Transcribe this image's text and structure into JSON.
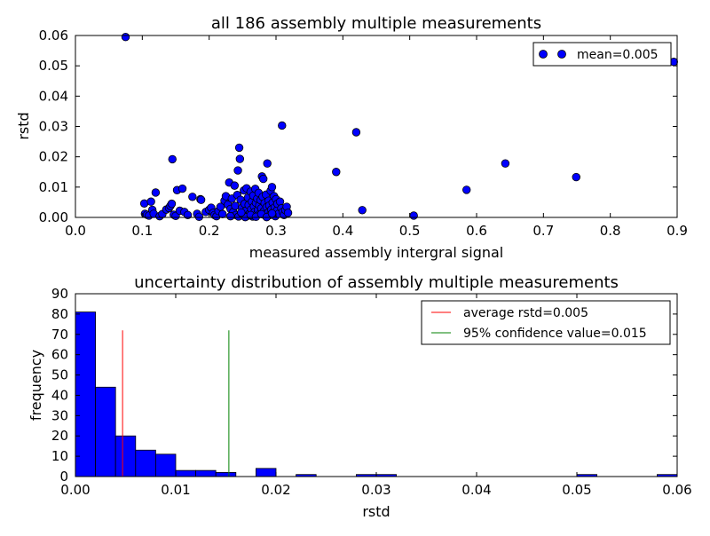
{
  "chart_data": [
    {
      "type": "scatter",
      "title": "all 186 assembly multiple measurements",
      "xlabel": "measured assembly intergral signal",
      "ylabel": "rstd",
      "xlim": [
        0.0,
        0.9
      ],
      "ylim": [
        0.0,
        0.06
      ],
      "xticks": [
        "0.0",
        "0.1",
        "0.2",
        "0.3",
        "0.4",
        "0.5",
        "0.6",
        "0.7",
        "0.8",
        "0.9"
      ],
      "yticks": [
        "0.00",
        "0.01",
        "0.02",
        "0.03",
        "0.04",
        "0.05",
        "0.06"
      ],
      "legend_position": "top-right",
      "colors": {
        "marker": "#0000ff"
      },
      "series": [
        {
          "name": "mean=0.005",
          "points": [
            [
              0.075,
              0.0595
            ],
            [
              0.145,
              0.0192
            ],
            [
              0.243,
              0.0155
            ],
            [
              0.245,
              0.023
            ],
            [
              0.246,
              0.0193
            ],
            [
              0.279,
              0.0135
            ],
            [
              0.281,
              0.0127
            ],
            [
              0.287,
              0.0178
            ],
            [
              0.309,
              0.0303
            ],
            [
              0.39,
              0.015
            ],
            [
              0.42,
              0.0281
            ],
            [
              0.429,
              0.0024
            ],
            [
              0.506,
              0.0006
            ],
            [
              0.585,
              0.0091
            ],
            [
              0.643,
              0.0178
            ],
            [
              0.749,
              0.0133
            ],
            [
              0.895,
              0.0513
            ],
            [
              0.103,
              0.0046
            ],
            [
              0.104,
              0.0012
            ],
            [
              0.107,
              0.0009
            ],
            [
              0.11,
              0.0006
            ],
            [
              0.113,
              0.0052
            ],
            [
              0.115,
              0.0025
            ],
            [
              0.117,
              0.0012
            ],
            [
              0.12,
              0.0082
            ],
            [
              0.126,
              0.0004
            ],
            [
              0.13,
              0.0011
            ],
            [
              0.136,
              0.0026
            ],
            [
              0.14,
              0.0031
            ],
            [
              0.142,
              0.0038
            ],
            [
              0.144,
              0.0045
            ],
            [
              0.147,
              0.0009
            ],
            [
              0.15,
              0.0005
            ],
            [
              0.152,
              0.009
            ],
            [
              0.156,
              0.0022
            ],
            [
              0.16,
              0.0095
            ],
            [
              0.163,
              0.0018
            ],
            [
              0.168,
              0.0008
            ],
            [
              0.175,
              0.0068
            ],
            [
              0.182,
              0.0012
            ],
            [
              0.185,
              0.0002
            ],
            [
              0.187,
              0.006
            ],
            [
              0.188,
              0.0058
            ],
            [
              0.195,
              0.0018
            ],
            [
              0.2,
              0.0025
            ],
            [
              0.203,
              0.0032
            ],
            [
              0.206,
              0.0015
            ],
            [
              0.208,
              0.0008
            ],
            [
              0.211,
              0.0004
            ],
            [
              0.214,
              0.0021
            ],
            [
              0.217,
              0.0035
            ],
            [
              0.22,
              0.0011
            ],
            [
              0.223,
              0.0055
            ],
            [
              0.225,
              0.007
            ],
            [
              0.228,
              0.0042
            ],
            [
              0.23,
              0.0115
            ],
            [
              0.232,
              0.0028
            ],
            [
              0.234,
              0.0062
            ],
            [
              0.236,
              0.0018
            ],
            [
              0.238,
              0.0105
            ],
            [
              0.239,
              0.0038
            ],
            [
              0.24,
              0.0008
            ],
            [
              0.242,
              0.0074
            ],
            [
              0.244,
              0.0003
            ],
            [
              0.247,
              0.0058
            ],
            [
              0.249,
              0.0032
            ],
            [
              0.25,
              0.0011
            ],
            [
              0.252,
              0.0089
            ],
            [
              0.253,
              0.0045
            ],
            [
              0.255,
              0.0022
            ],
            [
              0.256,
              0.0096
            ],
            [
              0.257,
              0.0005
            ],
            [
              0.258,
              0.0065
            ],
            [
              0.259,
              0.0041
            ],
            [
              0.261,
              0.0014
            ],
            [
              0.262,
              0.0085
            ],
            [
              0.263,
              0.0027
            ],
            [
              0.264,
              0.0052
            ],
            [
              0.265,
              0.0003
            ],
            [
              0.266,
              0.0072
            ],
            [
              0.267,
              0.0036
            ],
            [
              0.268,
              0.0018
            ],
            [
              0.269,
              0.0094
            ],
            [
              0.27,
              0.0048
            ],
            [
              0.271,
              0.0009
            ],
            [
              0.272,
              0.0062
            ],
            [
              0.273,
              0.0025
            ],
            [
              0.274,
              0.0081
            ],
            [
              0.275,
              0.004
            ],
            [
              0.276,
              0.0012
            ],
            [
              0.277,
              0.0057
            ],
            [
              0.278,
              0.003
            ],
            [
              0.28,
              0.0068
            ],
            [
              0.282,
              0.0021
            ],
            [
              0.283,
              0.0047
            ],
            [
              0.284,
              0.0006
            ],
            [
              0.285,
              0.0075
            ],
            [
              0.286,
              0.0034
            ],
            [
              0.288,
              0.0015
            ],
            [
              0.289,
              0.0055
            ],
            [
              0.29,
              0.0039
            ],
            [
              0.291,
              0.0008
            ],
            [
              0.292,
              0.0088
            ],
            [
              0.293,
              0.0026
            ],
            [
              0.294,
              0.01
            ],
            [
              0.295,
              0.0049
            ],
            [
              0.296,
              0.0017
            ],
            [
              0.297,
              0.007
            ],
            [
              0.298,
              0.0033
            ],
            [
              0.299,
              0.0004
            ],
            [
              0.3,
              0.006
            ],
            [
              0.301,
              0.0022
            ],
            [
              0.302,
              0.0045
            ],
            [
              0.304,
              0.0012
            ],
            [
              0.306,
              0.0052
            ],
            [
              0.308,
              0.003
            ],
            [
              0.31,
              0.0018
            ],
            [
              0.312,
              0.0008
            ],
            [
              0.314,
              0.0024
            ],
            [
              0.316,
              0.0035
            ],
            [
              0.318,
              0.0015
            ],
            [
              0.254,
              0.0001
            ],
            [
              0.262,
              0.0008
            ],
            [
              0.27,
              0.0002
            ],
            [
              0.278,
              0.0011
            ],
            [
              0.286,
              0.0001
            ],
            [
              0.294,
              0.0013
            ],
            [
              0.248,
              0.0016
            ],
            [
              0.232,
              0.0004
            ]
          ]
        }
      ]
    },
    {
      "type": "bar",
      "title": "uncertainty distribution of assembly multiple measurements",
      "xlabel": "rstd",
      "ylabel": "frequency",
      "xlim": [
        0.0,
        0.06
      ],
      "ylim": [
        0,
        90
      ],
      "xticks": [
        "0.00",
        "0.01",
        "0.02",
        "0.03",
        "0.04",
        "0.05",
        "0.06"
      ],
      "yticks": [
        "0",
        "10",
        "20",
        "30",
        "40",
        "50",
        "60",
        "70",
        "80",
        "90"
      ],
      "legend_position": "top-right",
      "colors": {
        "bar": "#0000ff",
        "average_line": "#ff0000",
        "confidence_line": "#008000"
      },
      "bin_width": 0.002,
      "bins": [
        [
          0.0,
          81
        ],
        [
          0.002,
          44
        ],
        [
          0.004,
          20
        ],
        [
          0.006,
          13
        ],
        [
          0.008,
          11
        ],
        [
          0.01,
          3
        ],
        [
          0.012,
          3
        ],
        [
          0.014,
          2
        ],
        [
          0.016,
          0
        ],
        [
          0.018,
          4
        ],
        [
          0.02,
          0
        ],
        [
          0.022,
          1
        ],
        [
          0.024,
          0
        ],
        [
          0.026,
          0
        ],
        [
          0.028,
          1
        ],
        [
          0.03,
          1
        ],
        [
          0.05,
          1
        ],
        [
          0.058,
          1
        ]
      ],
      "lines": [
        {
          "name": "average rstd=0.005",
          "x": 0.0047,
          "y_top": 72,
          "color": "#ff0000"
        },
        {
          "name": "95% confidence value=0.015",
          "x": 0.0153,
          "y_top": 72,
          "color": "#008000"
        }
      ]
    }
  ]
}
